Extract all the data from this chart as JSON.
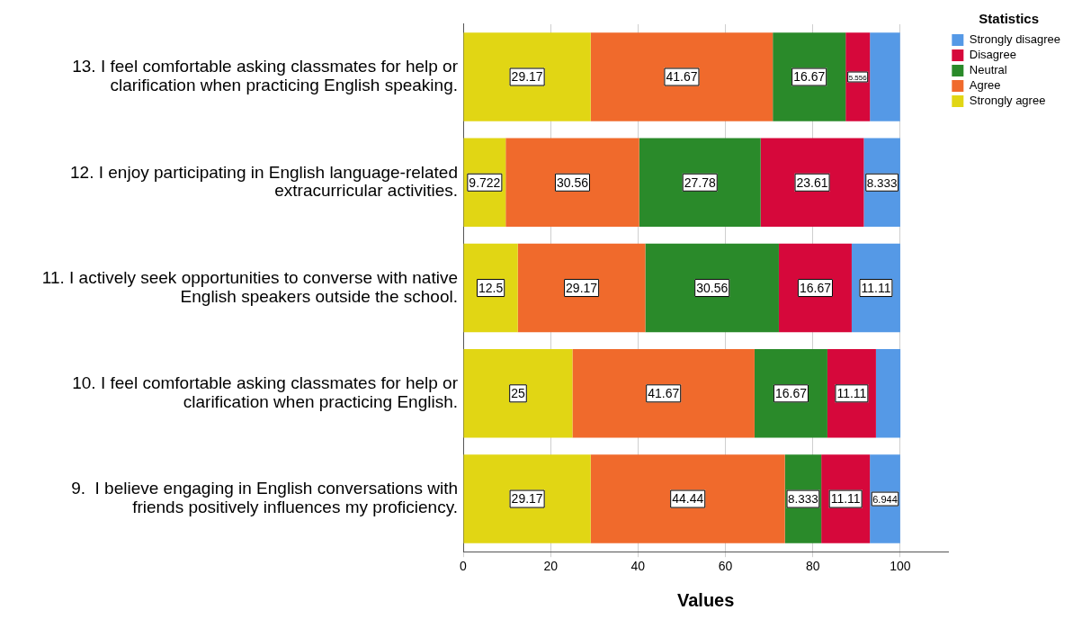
{
  "chart_data": {
    "type": "bar",
    "orientation": "horizontal",
    "stacked": true,
    "xlabel": "Values",
    "legend_title": "Statistics",
    "legend": "top right",
    "grid": "x",
    "categories": [
      "13. I feel comfortable asking classmates for help or clarification when practicing English speaking.",
      "12. I enjoy participating in English language-related extracurricular activities.",
      "11. I actively seek opportunities to converse with native English speakers outside the school.",
      "10. I feel comfortable asking classmates for help or clarification when practicing English.",
      "9.  I believe engaging in English conversations with friends positively influences my proficiency."
    ],
    "xlim": [
      0,
      111
    ],
    "xticks": [
      0,
      20,
      40,
      60,
      80,
      100
    ],
    "series": [
      {
        "name": "Strongly agree",
        "color": "#e1d614",
        "values": [
          29.17,
          9.722,
          12.5,
          25,
          29.17
        ],
        "value_labels": [
          "29.17",
          "9.722",
          "12.5",
          "25",
          "29.17"
        ]
      },
      {
        "name": "Agree",
        "color": "#f06a2c",
        "values": [
          41.67,
          30.56,
          29.17,
          41.67,
          44.44
        ],
        "value_labels": [
          "41.67",
          "30.56",
          "29.17",
          "41.67",
          "44.44"
        ]
      },
      {
        "name": "Neutral",
        "color": "#2a8a2a",
        "values": [
          16.67,
          27.78,
          30.56,
          16.67,
          8.333
        ],
        "value_labels": [
          "16.67",
          "27.78",
          "30.56",
          "16.67",
          "8.333"
        ]
      },
      {
        "name": "Disagree",
        "color": "#d6083b",
        "values": [
          5.556,
          23.61,
          16.67,
          11.11,
          11.11
        ],
        "value_labels": [
          "5.556",
          "23.61",
          "16.67",
          "11.11",
          "11.11"
        ]
      },
      {
        "name": "Strongly disagree",
        "color": "#5599e6",
        "values": [
          6.9,
          8.333,
          11.11,
          5.6,
          6.944
        ],
        "value_labels": [
          null,
          "8.333",
          "11.11",
          null,
          "6.944"
        ]
      }
    ]
  }
}
